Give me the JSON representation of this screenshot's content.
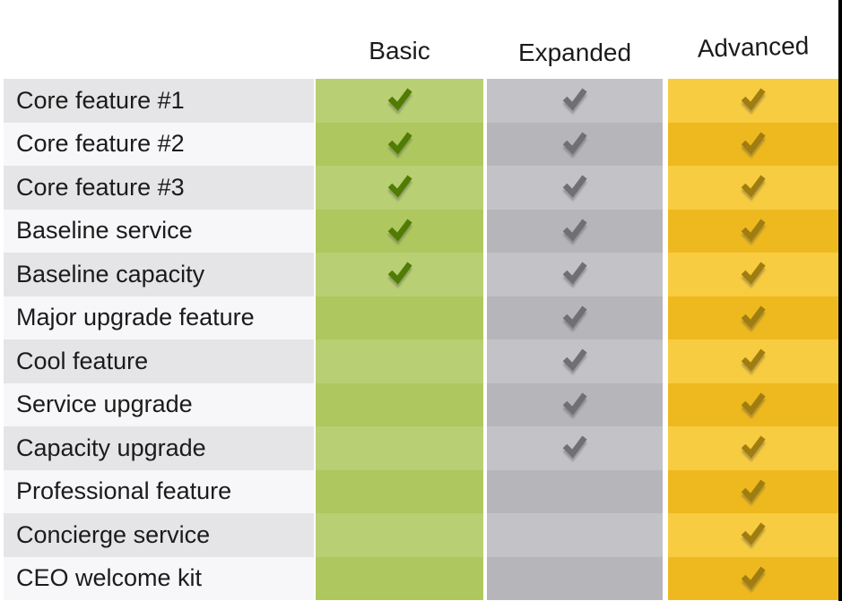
{
  "colors": {
    "background": "#ffffff",
    "text": "#1b1b1b",
    "label_row_odd": "#e5e5e7",
    "label_row_even": "#f7f7f9",
    "frame_right_border": "#000000"
  },
  "chart_data": {
    "type": "table",
    "legend_position": "top",
    "columns": [
      {
        "label": "Basic",
        "cell_color_odd": "#b8cf74",
        "cell_color_even": "#aec75f",
        "check_color": "#507c04"
      },
      {
        "label": "Expanded",
        "cell_color_odd": "#c3c3c7",
        "cell_color_even": "#b6b6ba",
        "check_color": "#707074"
      },
      {
        "label": "Advanced",
        "cell_color_odd": "#f7cc41",
        "cell_color_even": "#eeb91f",
        "check_color": "#a07d10"
      }
    ],
    "rows": [
      {
        "label": "Core feature #1",
        "checks": [
          true,
          true,
          true
        ]
      },
      {
        "label": "Core feature #2",
        "checks": [
          true,
          true,
          true
        ]
      },
      {
        "label": "Core feature #3",
        "checks": [
          true,
          true,
          true
        ]
      },
      {
        "label": "Baseline service",
        "checks": [
          true,
          true,
          true
        ]
      },
      {
        "label": "Baseline capacity",
        "checks": [
          true,
          true,
          true
        ]
      },
      {
        "label": "Major upgrade feature",
        "checks": [
          false,
          true,
          true
        ]
      },
      {
        "label": "Cool feature",
        "checks": [
          false,
          true,
          true
        ]
      },
      {
        "label": "Service upgrade",
        "checks": [
          false,
          true,
          true
        ]
      },
      {
        "label": "Capacity upgrade",
        "checks": [
          false,
          true,
          true
        ]
      },
      {
        "label": "Professional feature",
        "checks": [
          false,
          false,
          true
        ]
      },
      {
        "label": "Concierge service",
        "checks": [
          false,
          false,
          true
        ]
      },
      {
        "label": "CEO welcome kit",
        "checks": [
          false,
          false,
          true
        ]
      }
    ]
  }
}
